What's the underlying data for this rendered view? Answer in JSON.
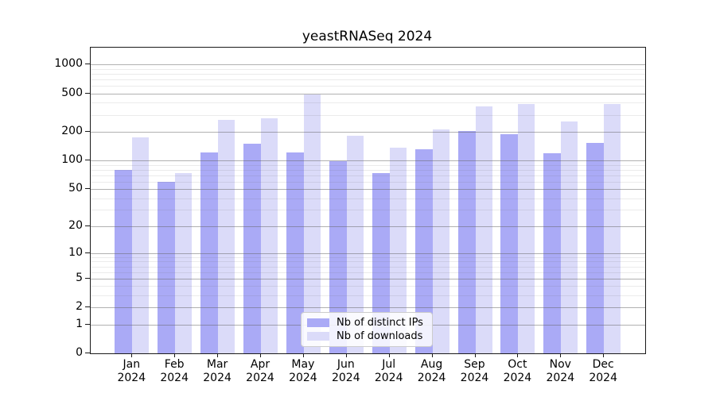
{
  "title": "yeastRNASeq 2024",
  "chart_data": {
    "type": "bar",
    "title": "yeastRNASeq 2024",
    "categories": [
      "Jan 2024",
      "Feb 2024",
      "Mar 2024",
      "Apr 2024",
      "May 2024",
      "Jun 2024",
      "Jul 2024",
      "Aug 2024",
      "Sep 2024",
      "Oct 2024",
      "Nov 2024",
      "Dec 2024"
    ],
    "series": [
      {
        "name": "Nb of distinct IPs",
        "color": "#aaaaf6",
        "values": [
          80,
          60,
          122,
          149,
          121,
          98,
          73,
          130,
          205,
          188,
          119,
          154
        ]
      },
      {
        "name": "Nb of downloads",
        "color": "#dbdbf9",
        "values": [
          175,
          73,
          263,
          276,
          492,
          180,
          137,
          213,
          367,
          392,
          256,
          387
        ]
      }
    ],
    "xlabel": "",
    "ylabel": "",
    "y_scale": "log1p",
    "y_ticks": [
      0,
      1,
      2,
      5,
      10,
      20,
      50,
      100,
      200,
      500,
      1000
    ],
    "y_minor_ticks": [
      3,
      4,
      6,
      7,
      8,
      9,
      30,
      40,
      60,
      70,
      80,
      90,
      300,
      400,
      600,
      700,
      800,
      900
    ],
    "ylim": [
      0,
      1500
    ],
    "grid": "on",
    "gridlines_above_bars": true,
    "legend_position": "lower center"
  },
  "legend": {
    "items": [
      {
        "label": "Nb of distinct IPs",
        "color": "#aaaaf6"
      },
      {
        "label": "Nb of downloads",
        "color": "#dbdbf9"
      }
    ]
  },
  "colors": {
    "bar_distinct_ips": "#aaaaf6",
    "bar_downloads": "#dbdbf9",
    "axis": "#1a1a1a",
    "grid_major": "#b2b2b2",
    "grid_minor": "#e9e9e9",
    "background": "#ffffff",
    "text": "#000000"
  }
}
